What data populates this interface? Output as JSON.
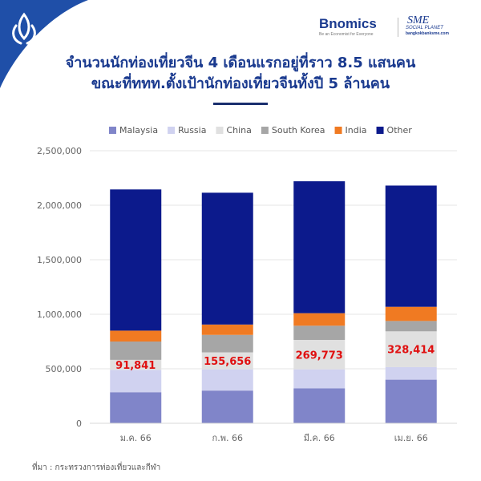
{
  "brand": {
    "bnomics_name": "Bnomics",
    "bnomics_tagline": "Be an Economist for Everyone",
    "sme_name": "SME",
    "sme_sub": "SOCIAL PLANET",
    "sme_url": "bangkokbanksme.com"
  },
  "title_lines": [
    "จำนวนนักท่องเที่ยวจีน 4 เดือนแรกอยู่ที่ราว 8.5 แสนคน",
    "ขณะที่ททท.ตั้งเป้านักท่องเที่ยวจีนทั้งปี 5 ล้านคน"
  ],
  "source_text": "ที่มา : กระทรวงการท่องเที่ยวและกีฬา",
  "colors": {
    "brand": "#1a3a8f",
    "corner_blue": "#1f4fa8"
  },
  "chart_data": {
    "type": "bar",
    "stacked": true,
    "categories": [
      "ม.ค. 66",
      "ก.พ. 66",
      "มี.ค. 66",
      "เม.ย. 66"
    ],
    "series": [
      {
        "name": "Malaysia",
        "color": "#8085c9",
        "values": [
          285000,
          300000,
          320000,
          400000
        ]
      },
      {
        "name": "Russia",
        "color": "#d0d2f0",
        "values": [
          205000,
          195000,
          175000,
          115000
        ]
      },
      {
        "name": "China",
        "color": "#e0e0e0",
        "values": [
          91841,
          155656,
          269773,
          328414
        ]
      },
      {
        "name": "South Korea",
        "color": "#a6a6a6",
        "values": [
          168000,
          160000,
          130000,
          95000
        ]
      },
      {
        "name": "India",
        "color": "#f07a22",
        "values": [
          100000,
          95000,
          115000,
          130000
        ]
      },
      {
        "name": "Other",
        "color": "#0c1a8c",
        "values": [
          1295000,
          1209000,
          1210000,
          1112000
        ]
      }
    ],
    "data_labels": {
      "series": "China",
      "values": [
        "91,841",
        "155,656",
        "269,773",
        "328,414"
      ]
    },
    "y_ticks": [
      "0",
      "500,000",
      "1,000,000",
      "1,500,000",
      "2,000,000",
      "2,500,000"
    ],
    "ylim": [
      0,
      2500000
    ],
    "legend": "top",
    "grid": true,
    "title": "",
    "xlabel": "",
    "ylabel": ""
  }
}
